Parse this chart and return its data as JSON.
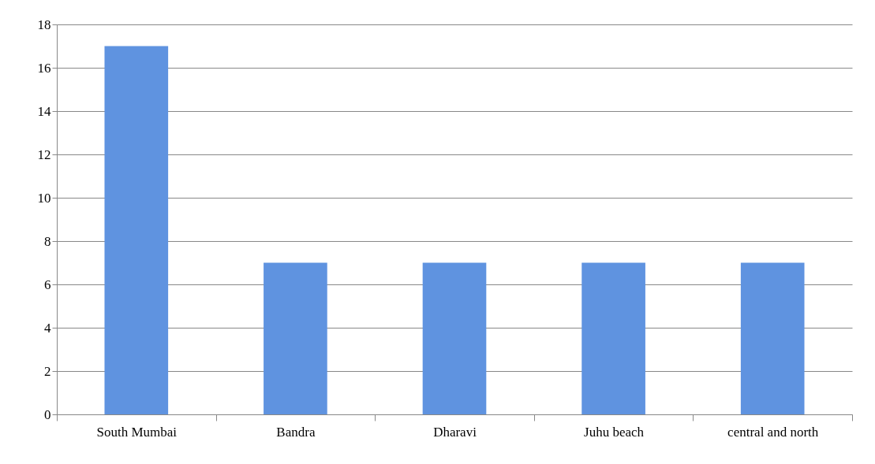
{
  "chart_data": {
    "type": "bar",
    "categories": [
      "South Mumbai",
      "Bandra",
      "Dharavi",
      "Juhu beach",
      "central and north"
    ],
    "values": [
      17,
      7,
      7,
      7,
      7
    ],
    "color": "#5f93e0",
    "ylim": [
      0,
      18
    ],
    "yticks": [
      0,
      2,
      4,
      6,
      8,
      10,
      12,
      14,
      16,
      18
    ],
    "grid": "y"
  }
}
